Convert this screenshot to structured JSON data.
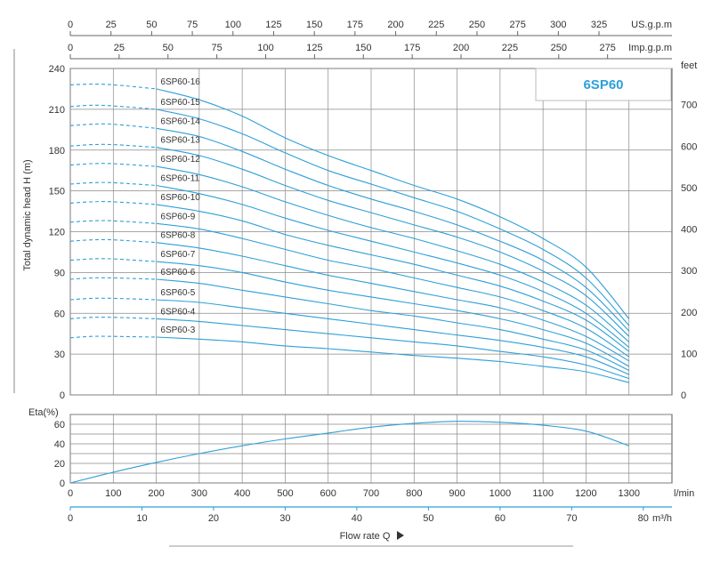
{
  "chart_data": [
    {
      "type": "line",
      "title": "6SP60",
      "ylabel": "Total dynamic head H (m)",
      "ylabel_right": "feet",
      "xlim": [
        0,
        1400
      ],
      "ylim": [
        0,
        240
      ],
      "ylim_right": [
        0,
        787.4
      ],
      "y_ticks": [
        0,
        30,
        60,
        90,
        120,
        150,
        180,
        210,
        240
      ],
      "y_ticks_right": [
        0,
        100,
        200,
        300,
        400,
        500,
        600,
        700
      ],
      "top_axes": [
        {
          "label": "US.g.p.m",
          "ticks": [
            0,
            25,
            50,
            75,
            100,
            125,
            150,
            175,
            200,
            225,
            250,
            275,
            300,
            325
          ]
        },
        {
          "label": "Imp.g.p.m",
          "ticks": [
            0,
            25,
            50,
            75,
            100,
            125,
            150,
            175,
            200,
            225,
            250,
            275
          ]
        }
      ],
      "grid": true,
      "series": [
        {
          "name": "6SP60-16",
          "values": [
            [
              0,
              228
            ],
            [
              50,
              228.5
            ],
            [
              100,
              228
            ],
            [
              200,
              225
            ],
            [
              300,
              217
            ],
            [
              400,
              205
            ],
            [
              500,
              189
            ],
            [
              600,
              176
            ],
            [
              700,
              165
            ],
            [
              800,
              154
            ],
            [
              900,
              144
            ],
            [
              1000,
              131
            ],
            [
              1100,
              115
            ],
            [
              1200,
              94
            ],
            [
              1300,
              56
            ]
          ]
        },
        {
          "name": "6SP60-15",
          "values": [
            [
              0,
              212
            ],
            [
              50,
              213
            ],
            [
              100,
              212.5
            ],
            [
              200,
              210
            ],
            [
              300,
              203
            ],
            [
              400,
              192
            ],
            [
              500,
              178
            ],
            [
              600,
              165
            ],
            [
              700,
              155
            ],
            [
              800,
              145
            ],
            [
              900,
              135
            ],
            [
              1000,
              122
            ],
            [
              1100,
              107
            ],
            [
              1200,
              86
            ],
            [
              1300,
              51
            ]
          ]
        },
        {
          "name": "6SP60-14",
          "values": [
            [
              0,
              198
            ],
            [
              50,
              199
            ],
            [
              100,
              199
            ],
            [
              200,
              196
            ],
            [
              300,
              190
            ],
            [
              400,
              179
            ],
            [
              500,
              166
            ],
            [
              600,
              154
            ],
            [
              700,
              144
            ],
            [
              800,
              135
            ],
            [
              900,
              125
            ],
            [
              1000,
              113
            ],
            [
              1100,
              99
            ],
            [
              1200,
              79
            ],
            [
              1300,
              47
            ]
          ]
        },
        {
          "name": "6SP60-13",
          "values": [
            [
              0,
              183
            ],
            [
              50,
              184
            ],
            [
              100,
              184
            ],
            [
              200,
              182
            ],
            [
              300,
              176
            ],
            [
              400,
              166
            ],
            [
              500,
              154
            ],
            [
              600,
              143
            ],
            [
              700,
              134
            ],
            [
              800,
              125
            ],
            [
              900,
              116
            ],
            [
              1000,
              105
            ],
            [
              1100,
              91
            ],
            [
              1200,
              73
            ],
            [
              1300,
              43
            ]
          ]
        },
        {
          "name": "6SP60-12",
          "values": [
            [
              0,
              169
            ],
            [
              50,
              170
            ],
            [
              100,
              170
            ],
            [
              200,
              168
            ],
            [
              300,
              162
            ],
            [
              400,
              153
            ],
            [
              500,
              142
            ],
            [
              600,
              132
            ],
            [
              700,
              123
            ],
            [
              800,
              115
            ],
            [
              900,
              106
            ],
            [
              1000,
              96
            ],
            [
              1100,
              83
            ],
            [
              1200,
              66
            ],
            [
              1300,
              39
            ]
          ]
        },
        {
          "name": "6SP60-11",
          "values": [
            [
              0,
              155
            ],
            [
              50,
              156
            ],
            [
              100,
              156
            ],
            [
              200,
              154
            ],
            [
              300,
              148
            ],
            [
              400,
              140
            ],
            [
              500,
              130
            ],
            [
              600,
              121
            ],
            [
              700,
              113
            ],
            [
              800,
              105
            ],
            [
              900,
              97
            ],
            [
              1000,
              88
            ],
            [
              1100,
              76
            ],
            [
              1200,
              60
            ],
            [
              1300,
              35
            ]
          ]
        },
        {
          "name": "6SP60-10",
          "values": [
            [
              0,
              141
            ],
            [
              50,
              142
            ],
            [
              100,
              142
            ],
            [
              200,
              140
            ],
            [
              300,
              135
            ],
            [
              400,
              128
            ],
            [
              500,
              118
            ],
            [
              600,
              110
            ],
            [
              700,
              103
            ],
            [
              800,
              96
            ],
            [
              900,
              88
            ],
            [
              1000,
              80
            ],
            [
              1100,
              69
            ],
            [
              1200,
              55
            ],
            [
              1300,
              32
            ]
          ]
        },
        {
          "name": "6SP60-9",
          "values": [
            [
              0,
              127
            ],
            [
              50,
              128
            ],
            [
              100,
              128
            ],
            [
              200,
              126
            ],
            [
              300,
              122
            ],
            [
              400,
              115
            ],
            [
              500,
              107
            ],
            [
              600,
              99
            ],
            [
              700,
              93
            ],
            [
              800,
              86
            ],
            [
              900,
              79
            ],
            [
              1000,
              72
            ],
            [
              1100,
              62
            ],
            [
              1200,
              49
            ],
            [
              1300,
              28
            ]
          ]
        },
        {
          "name": "6SP60-8",
          "values": [
            [
              0,
              113
            ],
            [
              50,
              114
            ],
            [
              100,
              114
            ],
            [
              200,
              112
            ],
            [
              300,
              108
            ],
            [
              400,
              102
            ],
            [
              500,
              95
            ],
            [
              600,
              88
            ],
            [
              700,
              82
            ],
            [
              800,
              76
            ],
            [
              900,
              70
            ],
            [
              1000,
              64
            ],
            [
              1100,
              55
            ],
            [
              1200,
              43
            ],
            [
              1300,
              25
            ]
          ]
        },
        {
          "name": "6SP60-7",
          "values": [
            [
              0,
              99
            ],
            [
              50,
              100
            ],
            [
              100,
              100
            ],
            [
              200,
              98
            ],
            [
              300,
              95
            ],
            [
              400,
              90
            ],
            [
              500,
              83
            ],
            [
              600,
              77
            ],
            [
              700,
              72
            ],
            [
              800,
              67
            ],
            [
              900,
              62
            ],
            [
              1000,
              56
            ],
            [
              1100,
              48
            ],
            [
              1200,
              38
            ],
            [
              1300,
              21
            ]
          ]
        },
        {
          "name": "6SP60-6",
          "values": [
            [
              0,
              85
            ],
            [
              50,
              86
            ],
            [
              100,
              86
            ],
            [
              200,
              85
            ],
            [
              300,
              82
            ],
            [
              400,
              77
            ],
            [
              500,
              72
            ],
            [
              600,
              67
            ],
            [
              700,
              62
            ],
            [
              800,
              58
            ],
            [
              900,
              53
            ],
            [
              1000,
              48
            ],
            [
              1100,
              41
            ],
            [
              1200,
              33
            ],
            [
              1300,
              18
            ]
          ]
        },
        {
          "name": "6SP60-5",
          "values": [
            [
              0,
              70
            ],
            [
              50,
              71
            ],
            [
              100,
              71
            ],
            [
              200,
              70
            ],
            [
              300,
              68
            ],
            [
              400,
              64
            ],
            [
              500,
              60
            ],
            [
              600,
              56
            ],
            [
              700,
              52
            ],
            [
              800,
              48
            ],
            [
              900,
              44
            ],
            [
              1000,
              40
            ],
            [
              1100,
              35
            ],
            [
              1200,
              28
            ],
            [
              1300,
              15
            ]
          ]
        },
        {
          "name": "6SP60-4",
          "values": [
            [
              0,
              56
            ],
            [
              50,
              57
            ],
            [
              100,
              57
            ],
            [
              200,
              56
            ],
            [
              300,
              54
            ],
            [
              400,
              51
            ],
            [
              500,
              48
            ],
            [
              600,
              45
            ],
            [
              700,
              42
            ],
            [
              800,
              39
            ],
            [
              900,
              36
            ],
            [
              1000,
              32
            ],
            [
              1100,
              28
            ],
            [
              1200,
              22
            ],
            [
              1300,
              12
            ]
          ]
        },
        {
          "name": "6SP60-3",
          "values": [
            [
              0,
              42
            ],
            [
              50,
              43
            ],
            [
              100,
              43
            ],
            [
              200,
              42.5
            ],
            [
              300,
              41
            ],
            [
              400,
              39
            ],
            [
              500,
              36
            ],
            [
              600,
              34
            ],
            [
              700,
              31.5
            ],
            [
              800,
              29
            ],
            [
              900,
              27
            ],
            [
              1000,
              24.5
            ],
            [
              1100,
              21
            ],
            [
              1200,
              17
            ],
            [
              1300,
              9
            ]
          ]
        }
      ]
    },
    {
      "type": "line",
      "ylabel": "Eta(%)",
      "xlabel": "Flow rate Q",
      "xlim": [
        0,
        1400
      ],
      "ylim": [
        0,
        70
      ],
      "y_ticks": [
        0,
        20,
        40,
        60
      ],
      "x_ticks": [
        0,
        100,
        200,
        300,
        400,
        500,
        600,
        700,
        800,
        900,
        1000,
        1100,
        1200,
        1300
      ],
      "x_unit": "l/min",
      "bottom_axis": {
        "unit": "m³/h",
        "ticks": [
          0,
          10,
          20,
          30,
          40,
          50,
          60,
          70,
          80
        ]
      },
      "grid": true,
      "series": [
        {
          "values": [
            [
              0,
              0
            ],
            [
              100,
              11
            ],
            [
              200,
              21
            ],
            [
              300,
              30
            ],
            [
              400,
              38
            ],
            [
              500,
              45
            ],
            [
              600,
              51
            ],
            [
              700,
              57
            ],
            [
              800,
              61
            ],
            [
              900,
              63
            ],
            [
              1000,
              62
            ],
            [
              1100,
              59
            ],
            [
              1200,
              53
            ],
            [
              1300,
              38
            ]
          ]
        }
      ]
    }
  ]
}
